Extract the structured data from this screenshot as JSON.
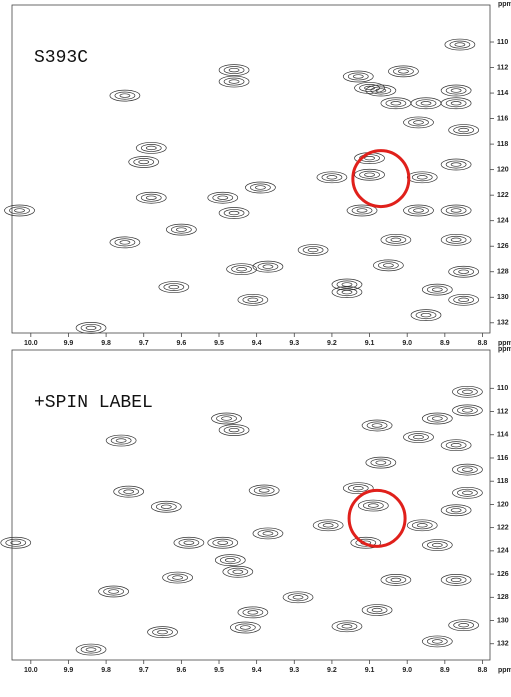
{
  "chart_data": [
    {
      "type": "contour",
      "title": "S393C",
      "x_label": "ppm",
      "y_label": "ppm",
      "color": "#333333",
      "xlim": [
        10.05,
        8.78
      ],
      "ylim": [
        107.1,
        132.8
      ],
      "xticks": [
        {
          "value": 10,
          "label": "10.0"
        },
        9.9,
        9.8,
        9.7,
        9.6,
        9.5,
        9.4,
        9.3,
        9.2,
        9.1,
        {
          "value": 9,
          "label": "9.0"
        },
        8.9,
        8.8
      ],
      "yticks": [
        110,
        112,
        114,
        116,
        118,
        120,
        122,
        124,
        126,
        128,
        130,
        132
      ],
      "x": [
        8.86,
        9.46,
        9.46,
        9.75,
        9.13,
        9.1,
        9.01,
        9.07,
        9.03,
        8.95,
        8.87,
        8.87,
        8.85,
        8.97,
        9.68,
        9.7,
        9.1,
        9.1,
        9.2,
        8.96,
        8.87,
        9.68,
        9.49,
        9.39,
        9.46,
        9.6,
        10.03,
        9.75,
        9.12,
        8.97,
        8.87,
        9.03,
        8.87,
        9.25,
        9.05,
        9.37,
        9.44,
        9.62,
        9.16,
        8.92,
        8.85,
        9.16,
        9.41,
        8.85,
        8.95,
        9.84
      ],
      "y": [
        110.2,
        112.2,
        113.1,
        114.2,
        112.7,
        113.6,
        112.3,
        113.8,
        114.8,
        114.8,
        114.8,
        113.8,
        116.9,
        116.3,
        118.3,
        119.4,
        119.1,
        120.4,
        120.6,
        120.6,
        119.6,
        122.2,
        122.2,
        121.4,
        123.4,
        124.7,
        123.2,
        125.7,
        123.2,
        123.2,
        123.2,
        125.5,
        125.5,
        126.3,
        127.5,
        127.6,
        127.8,
        129.2,
        129.0,
        129.4,
        128.0,
        129.6,
        130.2,
        130.2,
        131.4,
        132.4
      ],
      "highlight": {
        "x": 9.07,
        "y": 120.7,
        "color": "#e0201b"
      }
    },
    {
      "type": "contour",
      "title": "+SPIN LABEL",
      "x_label": "ppm",
      "y_label": "ppm",
      "color": "#333333",
      "xlim": [
        10.05,
        8.78
      ],
      "ylim": [
        106.7,
        133.4
      ],
      "xticks": [
        {
          "value": 10,
          "label": "10.0"
        },
        9.9,
        9.8,
        9.7,
        9.6,
        9.5,
        9.4,
        9.3,
        9.2,
        9.1,
        {
          "value": 9,
          "label": "9.0"
        },
        8.9,
        8.8
      ],
      "yticks": [
        110,
        112,
        114,
        116,
        118,
        120,
        122,
        124,
        126,
        128,
        130,
        132
      ],
      "x": [
        8.84,
        9.48,
        9.46,
        9.76,
        8.92,
        8.84,
        9.08,
        8.97,
        8.87,
        9.07,
        8.84,
        9.74,
        9.64,
        9.38,
        9.13,
        9.09,
        9.21,
        8.96,
        8.87,
        8.84,
        9.58,
        9.49,
        9.37,
        9.11,
        8.92,
        9.47,
        9.45,
        9.61,
        10.04,
        9.78,
        9.03,
        8.87,
        9.29,
        9.08,
        9.41,
        9.65,
        9.43,
        9.16,
        8.85,
        8.92,
        9.84
      ],
      "y": [
        110.3,
        112.6,
        113.6,
        114.5,
        112.6,
        111.9,
        113.2,
        114.2,
        114.9,
        116.4,
        117.0,
        118.9,
        120.2,
        118.8,
        118.6,
        120.1,
        121.8,
        121.8,
        120.5,
        119.0,
        123.3,
        123.3,
        122.5,
        123.3,
        123.5,
        124.8,
        125.8,
        126.3,
        123.3,
        127.5,
        126.5,
        126.5,
        128.0,
        129.1,
        129.3,
        131.0,
        130.6,
        130.5,
        130.4,
        131.8,
        132.5
      ],
      "highlight": {
        "x": 9.08,
        "y": 121.2,
        "color": "#e0201b"
      }
    }
  ]
}
